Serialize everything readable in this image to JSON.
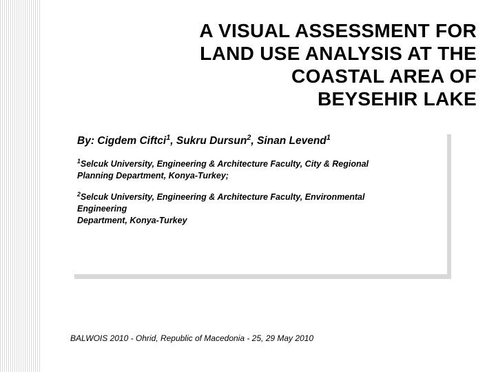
{
  "slide": {
    "title_line1": "A VISUAL ASSESSMENT FOR",
    "title_line2": "LAND USE ANALYSIS AT THE",
    "title_line3": "COASTAL AREA OF",
    "title_line4": "BEYSEHIR LAKE",
    "authors_prefix": "By: ",
    "authors": [
      {
        "name": "Cigdem Ciftci",
        "sup": "1"
      },
      {
        "name": "Sukru Dursun",
        "sup": "2"
      },
      {
        "name": "Sinan Levend",
        "sup": "1"
      }
    ],
    "affiliations": [
      {
        "sup": "1",
        "text_lines": [
          "Selcuk University, Engineering & Architecture Faculty, City & Regional",
          "Planning Department, Konya-Turkey;"
        ]
      },
      {
        "sup": "2",
        "text_lines": [
          "Selcuk University, Engineering & Architecture Faculty, Environmental",
          "Engineering",
          "Department, Konya-Turkey"
        ]
      }
    ],
    "footer": "BALWOIS 2010 - Ohrid, Republic of Macedonia - 25, 29 May 2010"
  },
  "style": {
    "stripe_color": "#d8d8d8",
    "background_color": "#ffffff",
    "text_color": "#000000",
    "title_fontsize": 28,
    "authors_fontsize": 15.5,
    "affiliation_fontsize": 12.5,
    "footer_fontsize": 12,
    "shadow_color": "#d8d8d8"
  }
}
